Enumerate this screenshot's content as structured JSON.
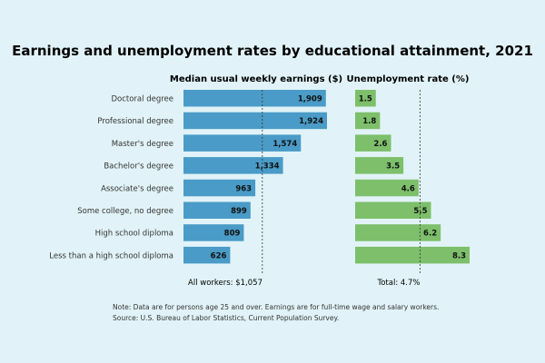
{
  "chart_data": {
    "type": "bar",
    "title": "Earnings and unemployment rates by educational attainment, 2021",
    "categories": [
      "Doctoral degree",
      "Professional degree",
      "Master's degree",
      "Bachelor's degree",
      "Associate's degree",
      "Some college, no degree",
      "High school diploma",
      "Less than a high school diploma"
    ],
    "panels": [
      {
        "title": "Median usual weekly earnings ($)",
        "values": [
          1909,
          1924,
          1574,
          1334,
          963,
          899,
          809,
          626
        ],
        "labels": [
          "1,909",
          "1,924",
          "1,574",
          "1,334",
          "963",
          "899",
          "809",
          "626"
        ],
        "reference_value": 1057,
        "reference_label": "All workers: $1,057",
        "color": "#4a9bc7",
        "xlim": [
          0,
          2200
        ],
        "axis_visible": false
      },
      {
        "title": "Unemployment rate (%)",
        "values": [
          1.5,
          1.8,
          2.6,
          3.5,
          4.6,
          5.5,
          6.2,
          8.3
        ],
        "labels": [
          "1.5",
          "1.8",
          "2.6",
          "3.5",
          "4.6",
          "5.5",
          "6.2",
          "8.3"
        ],
        "reference_value": 4.7,
        "reference_label": "Total: 4.7%",
        "color": "#7dbf6a",
        "xlim": [
          0,
          8.3
        ],
        "axis_visible": false
      }
    ],
    "notes": [
      "Note: Data are for persons age 25 and over. Earnings are for full-time wage and salary workers.",
      "Source: U.S. Bureau of Labor Statistics, Current Population Survey."
    ],
    "grid": false,
    "legend": "none"
  }
}
